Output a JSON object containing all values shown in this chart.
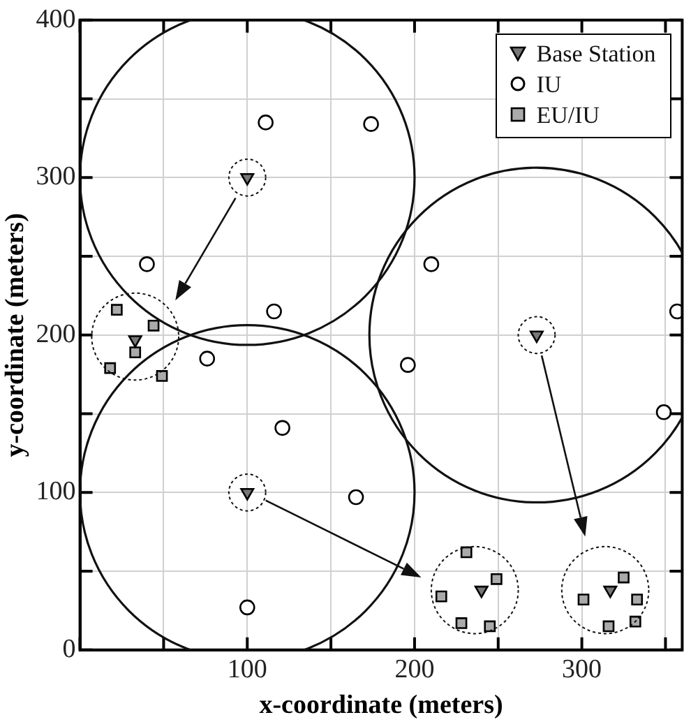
{
  "chart_data": {
    "type": "scatter",
    "xlabel": "x-coordinate (meters)",
    "ylabel": "y-coordinate (meters)",
    "xlim": [
      0,
      360
    ],
    "ylim": [
      0,
      400
    ],
    "xticks": [
      {
        "value": 0,
        "label": null
      },
      {
        "value": 50,
        "label": null
      },
      100,
      {
        "value": 150,
        "label": null
      },
      200,
      {
        "value": 250,
        "label": null
      },
      300,
      {
        "value": 350,
        "label": null
      }
    ],
    "yticks": [
      0,
      {
        "value": 50,
        "label": null
      },
      100,
      {
        "value": 150,
        "label": null
      },
      200,
      {
        "value": 250,
        "label": null
      },
      300,
      {
        "value": 350,
        "label": null
      },
      400
    ],
    "grid": true,
    "legend": "top right",
    "series": [
      {
        "name": "Base Station",
        "color": "#777777",
        "marker": "triangle",
        "x": [
          100,
          100,
          273,
          33,
          240,
          317
        ],
        "values": [
          300,
          100,
          200,
          197,
          38,
          38
        ]
      },
      {
        "name": "IU",
        "color": "#ffffff",
        "marker": "circle",
        "x": [
          111,
          40,
          116,
          76,
          174,
          210,
          357,
          196,
          349,
          165,
          121,
          100
        ],
        "values": [
          335,
          245,
          215,
          185,
          334,
          245,
          215,
          181,
          151,
          97,
          141,
          27
        ]
      },
      {
        "name": "EU/IU",
        "color": "#aaaaaa",
        "marker": "square",
        "x": [
          22,
          44,
          33,
          18,
          49,
          231,
          249,
          216,
          228,
          245,
          325,
          301,
          333,
          332,
          316
        ],
        "values": [
          216,
          206,
          189,
          179,
          174,
          62,
          45,
          34,
          17,
          15,
          46,
          32,
          32,
          18,
          15
        ]
      }
    ]
  }
}
